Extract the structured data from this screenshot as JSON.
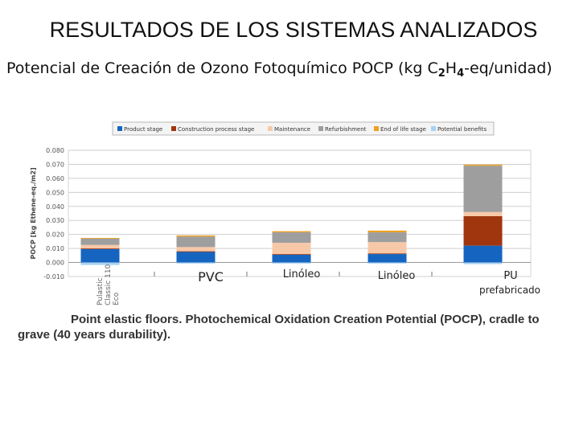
{
  "slide": {
    "title": "RESULTADOS DE LOS SISTEMAS ANALIZADOS",
    "subtitle_pre": "Potencial de Creación de Ozono Fotoquímico POCP (kg C",
    "subtitle_sub1": "2",
    "subtitle_mid": "H",
    "subtitle_sub2": "4",
    "subtitle_post": "-eq/unidad)"
  },
  "caption": {
    "line1": "Point elastic floors. Photochemical Oxidation Creation Potential (POCP), cradle to",
    "line2": "grave (40 years durability)."
  },
  "chart_data": {
    "type": "bar",
    "stacked": true,
    "ylabel": "POCP [kg Ethene-eq./m2]",
    "ylim": [
      -0.01,
      0.08
    ],
    "yticks": [
      "-0.010",
      "0.000",
      "0.010",
      "0.020",
      "0.030",
      "0.040",
      "0.050",
      "0.060",
      "0.070",
      "0.080"
    ],
    "grid": true,
    "legend_position": "top",
    "categories": [
      "Pulastic Classic 110 Eco",
      "PVC",
      "Linóleo",
      "Linóleo",
      "PU prefabricado"
    ],
    "category_label_colors": [
      "#666666",
      "#222222",
      "#222222",
      "#222222",
      "#222222"
    ],
    "series": [
      {
        "name": "Product stage",
        "color": "#1565c0",
        "values": [
          0.0095,
          0.0075,
          0.0055,
          0.006,
          0.012
        ]
      },
      {
        "name": "Construction process stage",
        "color": "#a0360e",
        "values": [
          0.0005,
          0.0005,
          0.0005,
          0.0005,
          0.021
        ]
      },
      {
        "name": "Maintenance",
        "color": "#f7c8a8",
        "values": [
          0.0025,
          0.003,
          0.008,
          0.008,
          0.003
        ]
      },
      {
        "name": "Refurbishment",
        "color": "#9e9e9e",
        "values": [
          0.0045,
          0.0075,
          0.0075,
          0.007,
          0.033
        ]
      },
      {
        "name": "End of life stage",
        "color": "#f0a020",
        "values": [
          0.0005,
          0.0008,
          0.0008,
          0.0012,
          0.0008
        ]
      },
      {
        "name": "Potential benefits",
        "color": "#a9d2f2",
        "values": [
          -0.0018,
          -0.0008,
          -0.0008,
          -0.0008,
          -0.0012
        ]
      }
    ]
  }
}
